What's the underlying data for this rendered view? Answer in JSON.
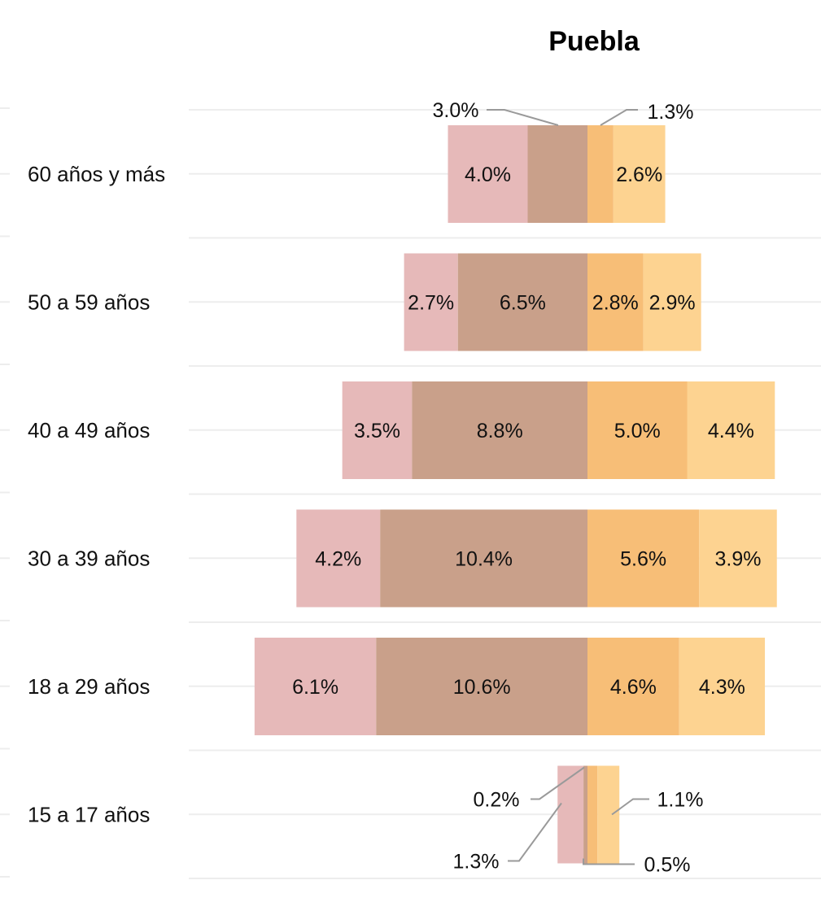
{
  "chart_data": {
    "type": "bar",
    "orientation": "horizontal-diverging",
    "title": "Puebla",
    "categories": [
      "60 años y más",
      "50 a 59 años",
      "40 a 49 años",
      "30 a 39 años",
      "18 a 29 años",
      "15 a 17 años"
    ],
    "series": [
      {
        "side": "left",
        "color": "#E6B9B9",
        "values": [
          4.0,
          2.7,
          3.5,
          4.2,
          6.1,
          1.3
        ]
      },
      {
        "side": "left",
        "color": "#C9A08A",
        "values": [
          3.0,
          6.5,
          8.8,
          10.4,
          10.6,
          0.2
        ]
      },
      {
        "side": "right",
        "color": "#F7BE77",
        "values": [
          1.3,
          2.8,
          5.0,
          5.6,
          4.6,
          0.5
        ]
      },
      {
        "side": "right",
        "color": "#FDD391",
        "values": [
          2.6,
          2.9,
          4.4,
          3.9,
          4.3,
          1.1
        ]
      }
    ],
    "data_labels": [
      [
        "4.0%",
        "3.0%",
        "1.3%",
        "2.6%"
      ],
      [
        "2.7%",
        "6.5%",
        "2.8%",
        "2.9%"
      ],
      [
        "3.5%",
        "8.8%",
        "5.0%",
        "4.4%"
      ],
      [
        "4.2%",
        "10.4%",
        "5.6%",
        "3.9%"
      ],
      [
        "6.1%",
        "10.6%",
        "4.6%",
        "4.3%"
      ],
      [
        "1.3%",
        "0.2%",
        "0.5%",
        "1.1%"
      ]
    ],
    "grid": true,
    "legend": "none"
  }
}
